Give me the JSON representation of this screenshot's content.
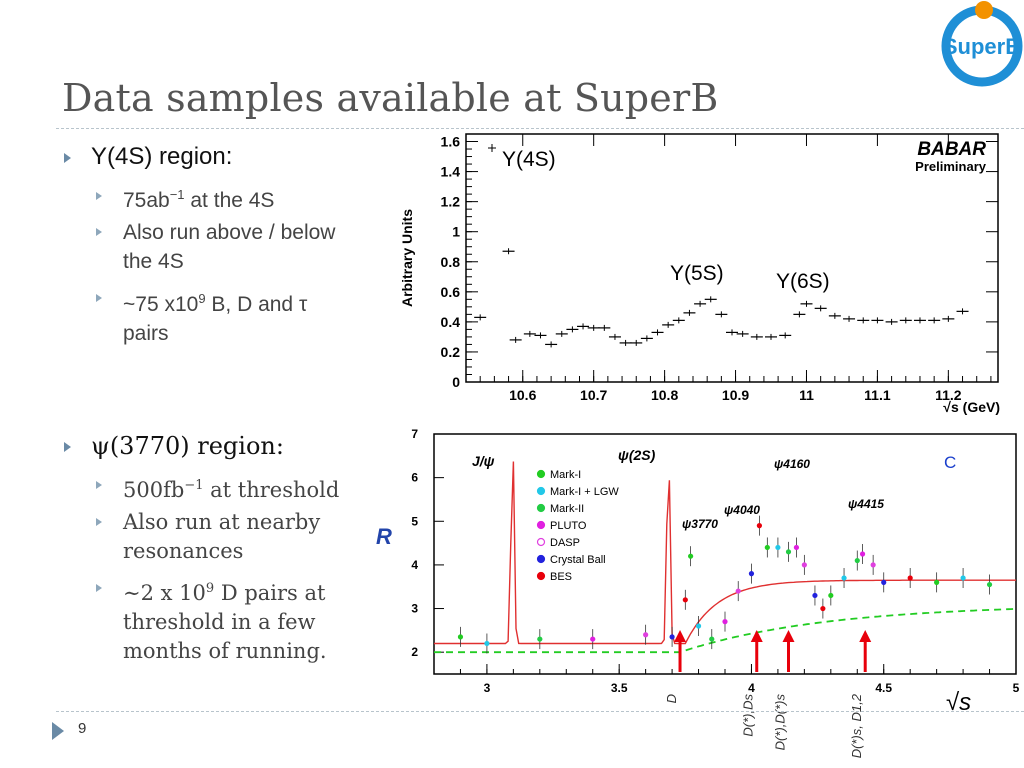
{
  "slide": {
    "title": "Data samples available at SuperB",
    "page_number": "9",
    "logo_text": "SuperB"
  },
  "section1": {
    "heading": "Υ(4S) region:",
    "items": [
      {
        "text": "75ab",
        "sup": "−1",
        "tail": " at the 4S"
      },
      {
        "line1": "Also run above / below",
        "line2": "the 4S"
      },
      {
        "pre": "~75 x10",
        "sup": "9",
        "post": " B, D and τ",
        "line2": "pairs"
      }
    ]
  },
  "section2": {
    "heading": "ψ(3770) region:",
    "items": [
      {
        "text": "500fb",
        "sup": "−1",
        "tail": " at threshold"
      },
      {
        "line1": "Also run at nearby",
        "line2": "resonances"
      },
      {
        "pre": "∼2 x 10",
        "sup": "9",
        "post": " D pairs at",
        "line2": "threshold in a few",
        "line3": "months of running."
      }
    ]
  },
  "colors": {
    "accent": "#6a8aa6",
    "title": "#555555",
    "logo_blue": "#1f8fd6",
    "logo_orange": "#f39200",
    "bes_red": "#e8000b",
    "fit_red": "#e03030",
    "fit_green": "#22cc22"
  },
  "chart_data": [
    {
      "type": "scatter",
      "title": "",
      "xlabel": "√s (GeV)",
      "ylabel": "Arbitrary Units",
      "xlim": [
        10.52,
        11.27
      ],
      "ylim": [
        0,
        1.65
      ],
      "x_ticks": [
        "10.6",
        "10.7",
        "10.8",
        "10.9",
        "11",
        "11.1",
        "11.2"
      ],
      "y_ticks": [
        "0",
        "0.2",
        "0.4",
        "0.6",
        "0.8",
        "1",
        "1.2",
        "1.4",
        "1.6"
      ],
      "annotations": [
        "Υ(4S)",
        "Υ(5S)",
        "Υ(6S)"
      ],
      "experiment_label": "BABAR",
      "experiment_sublabel": "Preliminary",
      "points": [
        {
          "x": 10.54,
          "y": 0.43
        },
        {
          "x": 10.58,
          "y": 0.87
        },
        {
          "x": 10.59,
          "y": 0.28
        },
        {
          "x": 10.61,
          "y": 0.32
        },
        {
          "x": 10.625,
          "y": 0.31
        },
        {
          "x": 10.64,
          "y": 0.25
        },
        {
          "x": 10.655,
          "y": 0.32
        },
        {
          "x": 10.67,
          "y": 0.35
        },
        {
          "x": 10.685,
          "y": 0.37
        },
        {
          "x": 10.7,
          "y": 0.36
        },
        {
          "x": 10.715,
          "y": 0.36
        },
        {
          "x": 10.73,
          "y": 0.3
        },
        {
          "x": 10.745,
          "y": 0.26
        },
        {
          "x": 10.76,
          "y": 0.26
        },
        {
          "x": 10.775,
          "y": 0.29
        },
        {
          "x": 10.79,
          "y": 0.33
        },
        {
          "x": 10.805,
          "y": 0.38
        },
        {
          "x": 10.82,
          "y": 0.41
        },
        {
          "x": 10.835,
          "y": 0.46
        },
        {
          "x": 10.85,
          "y": 0.52
        },
        {
          "x": 10.865,
          "y": 0.55
        },
        {
          "x": 10.88,
          "y": 0.45
        },
        {
          "x": 10.895,
          "y": 0.33
        },
        {
          "x": 10.91,
          "y": 0.32
        },
        {
          "x": 10.93,
          "y": 0.3
        },
        {
          "x": 10.95,
          "y": 0.3
        },
        {
          "x": 10.97,
          "y": 0.31
        },
        {
          "x": 10.99,
          "y": 0.45
        },
        {
          "x": 11.0,
          "y": 0.52
        },
        {
          "x": 11.02,
          "y": 0.49
        },
        {
          "x": 11.04,
          "y": 0.44
        },
        {
          "x": 11.06,
          "y": 0.42
        },
        {
          "x": 11.08,
          "y": 0.41
        },
        {
          "x": 11.1,
          "y": 0.41
        },
        {
          "x": 11.12,
          "y": 0.4
        },
        {
          "x": 11.14,
          "y": 0.41
        },
        {
          "x": 11.16,
          "y": 0.41
        },
        {
          "x": 11.18,
          "y": 0.41
        },
        {
          "x": 11.2,
          "y": 0.42
        },
        {
          "x": 11.22,
          "y": 0.47
        }
      ]
    },
    {
      "type": "scatter",
      "title": "",
      "xlabel": "√s",
      "ylabel": "R",
      "xlim": [
        2.8,
        5.0
      ],
      "ylim": [
        1.5,
        7
      ],
      "x_ticks": [
        "3",
        "3.5",
        "4",
        "4.5",
        "5"
      ],
      "y_ticks": [
        "2",
        "3",
        "4",
        "5",
        "6",
        "7"
      ],
      "corner_label": "C",
      "legend": [
        "Mark-I",
        "Mark-I + LGW",
        "Mark-II",
        "PLUTO",
        "DASP",
        "Crystal Ball",
        "BES"
      ],
      "legend_colors": [
        "#22cc22",
        "#22c8e8",
        "#22cc44",
        "#e020e0",
        "#e040e0",
        "#2222dd",
        "#e8000b"
      ],
      "annotations": [
        "J/ψ",
        "ψ(2S)",
        "ψ3770",
        "ψ4040",
        "ψ4160",
        "ψ4415"
      ],
      "threshold_labels": [
        "D",
        "D(*),Ds",
        "D(*),D(*)s",
        "D(*),D(*)s, D1,2"
      ],
      "threshold_x": [
        3.73,
        4.02,
        4.14,
        4.43
      ],
      "resonances_x": [
        3.097,
        3.686
      ],
      "points": [
        {
          "x": 2.9,
          "y": 2.35
        },
        {
          "x": 3.0,
          "y": 2.2
        },
        {
          "x": 3.2,
          "y": 2.3
        },
        {
          "x": 3.4,
          "y": 2.3
        },
        {
          "x": 3.6,
          "y": 2.4
        },
        {
          "x": 3.7,
          "y": 2.35
        },
        {
          "x": 3.75,
          "y": 3.2
        },
        {
          "x": 3.77,
          "y": 4.2
        },
        {
          "x": 3.8,
          "y": 2.6
        },
        {
          "x": 3.85,
          "y": 2.3
        },
        {
          "x": 3.9,
          "y": 2.7
        },
        {
          "x": 3.95,
          "y": 3.4
        },
        {
          "x": 4.0,
          "y": 3.8
        },
        {
          "x": 4.03,
          "y": 4.9
        },
        {
          "x": 4.06,
          "y": 4.4
        },
        {
          "x": 4.1,
          "y": 4.4
        },
        {
          "x": 4.14,
          "y": 4.3
        },
        {
          "x": 4.17,
          "y": 4.4
        },
        {
          "x": 4.2,
          "y": 4.0
        },
        {
          "x": 4.24,
          "y": 3.3
        },
        {
          "x": 4.27,
          "y": 3.0
        },
        {
          "x": 4.3,
          "y": 3.3
        },
        {
          "x": 4.35,
          "y": 3.7
        },
        {
          "x": 4.4,
          "y": 4.1
        },
        {
          "x": 4.42,
          "y": 4.25
        },
        {
          "x": 4.46,
          "y": 4.0
        },
        {
          "x": 4.5,
          "y": 3.6
        },
        {
          "x": 4.6,
          "y": 3.7
        },
        {
          "x": 4.7,
          "y": 3.6
        },
        {
          "x": 4.8,
          "y": 3.7
        },
        {
          "x": 4.9,
          "y": 3.55
        }
      ]
    }
  ]
}
